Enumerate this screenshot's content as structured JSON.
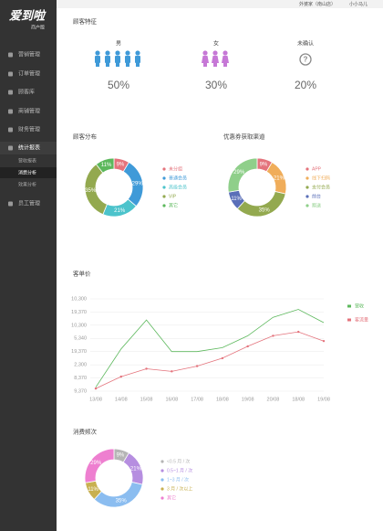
{
  "sidebar": {
    "logo": "爱到啦",
    "logo_sub": "商户版",
    "menu": [
      "营销管理",
      "订单管理",
      "顾客库",
      "商铺管理",
      "财务管理",
      "统计报表"
    ],
    "submenu": [
      "营收报表",
      "消费分析",
      "效果分析"
    ],
    "menu_after": [
      "员工管理"
    ]
  },
  "topbar": {
    "shop": "外婆家（南山店）",
    "user": "小小马儿"
  },
  "gender": {
    "title": "顾客特征",
    "items": [
      {
        "label": "男",
        "value": "50%"
      },
      {
        "label": "女",
        "value": "30%"
      },
      {
        "label": "未确认",
        "value": "20%"
      }
    ]
  },
  "chart_data": [
    {
      "type": "donut",
      "title": "顾客分布",
      "categories": [
        "未分组",
        "普通会员",
        "高级会员",
        "VIP",
        "其它"
      ],
      "values": [
        9,
        29,
        21,
        35,
        11
      ],
      "value_labels": [
        "9%",
        "29%",
        "21%",
        "35%",
        "11%"
      ],
      "colors": [
        "#e4737c",
        "#3f9ad8",
        "#4cc3cb",
        "#93a94f",
        "#5cb85c"
      ]
    },
    {
      "type": "donut",
      "title": "优惠券获取渠道",
      "categories": [
        "APP",
        "线下扫码",
        "支付会员",
        "前台",
        "赠送"
      ],
      "values": [
        9,
        21,
        35,
        11,
        29
      ],
      "value_labels": [
        "9%",
        "21%",
        "35%",
        "11%",
        "29%"
      ],
      "colors": [
        "#e4737c",
        "#f0ad5a",
        "#93a94f",
        "#5a6fb8",
        "#8fcf8a"
      ]
    },
    {
      "type": "line",
      "title": "客单价",
      "categories": [
        "13/08",
        "14/08",
        "15/08",
        "16/08",
        "17/08",
        "18/08",
        "19/08",
        "20/08",
        "18/08",
        "19/08"
      ],
      "ylim": [
        0,
        7
      ],
      "yticks": [
        {
          "value": 0,
          "label": "9,370"
        },
        {
          "value": 1,
          "label": "8,370"
        },
        {
          "value": 2,
          "label": "2,300"
        },
        {
          "value": 3,
          "label": "19,370"
        },
        {
          "value": 4,
          "label": "5,340"
        },
        {
          "value": 5,
          "label": "10,300"
        },
        {
          "value": 6,
          "label": "19,370"
        },
        {
          "value": 7,
          "label": "10,300"
        }
      ],
      "grid": true,
      "legend": "right",
      "series": [
        {
          "name": "营收",
          "color": "#5cb85c",
          "values": [
            0.3,
            3.2,
            5.4,
            3.0,
            3.0,
            3.3,
            4.2,
            5.6,
            6.2,
            5.2
          ]
        },
        {
          "name": "客流量",
          "color": "#e4737c",
          "markers": true,
          "values": [
            0.2,
            1.1,
            1.7,
            1.5,
            1.9,
            2.5,
            3.4,
            4.2,
            4.5,
            3.8
          ]
        }
      ]
    },
    {
      "type": "donut",
      "title": "消费频次",
      "categories": [
        "<0.5 月 / 次",
        "0.5~1 月 / 次",
        "1~3 月 / 次",
        "3 月 / 次以上",
        "其它"
      ],
      "values": [
        9,
        21,
        35,
        11,
        29
      ],
      "value_labels": [
        "9%",
        "21%",
        "35%",
        "11%",
        "29%"
      ],
      "colors": [
        "#b5b5b5",
        "#b68ee0",
        "#8bbdf0",
        "#c8b050",
        "#ee7fd0"
      ]
    }
  ]
}
